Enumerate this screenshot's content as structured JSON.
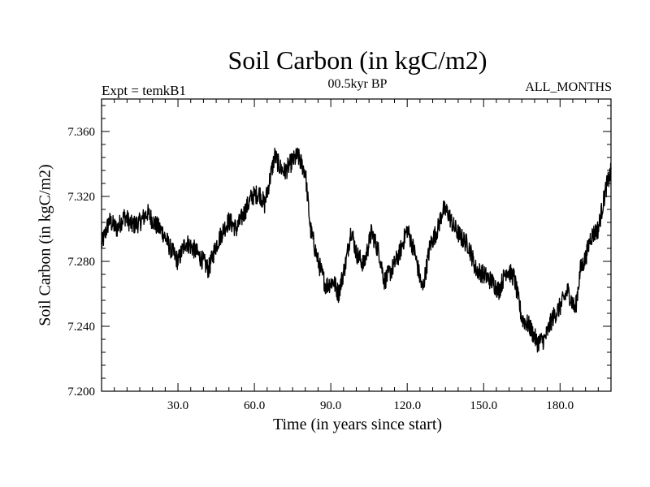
{
  "chart_data": {
    "type": "line",
    "title": "Soil Carbon (in kgC/m2)",
    "subtitle_left": "Expt = temkB1",
    "subtitle_center": "00.5kyr BP",
    "subtitle_right": "ALL_MONTHS",
    "xlabel": "Time (in years since start)",
    "ylabel": "Soil Carbon (in kgC/m2)",
    "xlim": [
      0,
      200
    ],
    "ylim": [
      7.2,
      7.38
    ],
    "xticks": [
      30,
      60,
      90,
      120,
      150,
      180
    ],
    "xtick_labels": [
      "30.0",
      "60.0",
      "90.0",
      "120.0",
      "150.0",
      "180.0"
    ],
    "yticks": [
      7.2,
      7.24,
      7.28,
      7.32,
      7.36
    ],
    "ytick_labels": [
      "7.200",
      "7.240",
      "7.280",
      "7.320",
      "7.360"
    ],
    "noise_amplitude": 0.006,
    "series": [
      {
        "name": "Soil Carbon",
        "color": "#000000",
        "x": [
          0,
          3,
          6,
          9,
          12,
          15,
          18,
          21,
          24,
          27,
          30,
          33,
          36,
          39,
          42,
          45,
          48,
          50,
          53,
          56,
          59,
          62,
          64,
          66,
          68,
          70,
          72,
          74,
          77,
          80,
          82,
          85,
          88,
          91,
          93,
          96,
          98,
          100,
          103,
          106,
          109,
          111,
          114,
          117,
          120,
          123,
          126,
          129,
          132,
          134,
          136,
          138,
          141,
          144,
          147,
          150,
          153,
          156,
          159,
          162,
          165,
          168,
          171,
          174,
          177,
          180,
          183,
          186,
          188,
          190,
          192,
          195,
          198,
          200
        ],
        "values": [
          7.29,
          7.305,
          7.3,
          7.308,
          7.302,
          7.304,
          7.31,
          7.303,
          7.298,
          7.288,
          7.28,
          7.292,
          7.288,
          7.282,
          7.275,
          7.29,
          7.3,
          7.305,
          7.3,
          7.31,
          7.32,
          7.322,
          7.315,
          7.33,
          7.345,
          7.338,
          7.335,
          7.34,
          7.345,
          7.335,
          7.3,
          7.28,
          7.265,
          7.268,
          7.26,
          7.28,
          7.3,
          7.285,
          7.278,
          7.298,
          7.285,
          7.268,
          7.275,
          7.285,
          7.3,
          7.285,
          7.262,
          7.29,
          7.3,
          7.312,
          7.31,
          7.302,
          7.295,
          7.29,
          7.275,
          7.272,
          7.268,
          7.262,
          7.275,
          7.27,
          7.245,
          7.24,
          7.23,
          7.232,
          7.245,
          7.252,
          7.262,
          7.25,
          7.275,
          7.282,
          7.295,
          7.3,
          7.325,
          7.335
        ]
      }
    ]
  }
}
